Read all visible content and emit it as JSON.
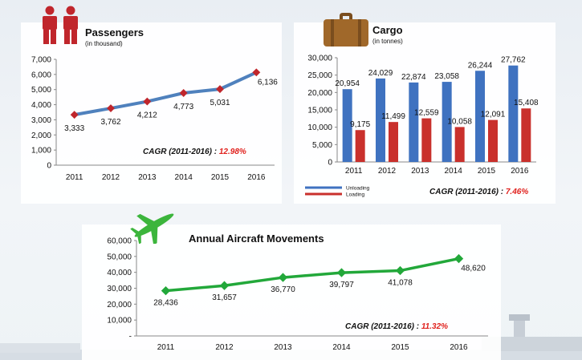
{
  "passengers": {
    "title": "Passengers",
    "subtitle": "(in thousand)",
    "cagr_label": "CAGR (2011-2016) : ",
    "cagr_value": "12.98%",
    "chart_data": {
      "type": "line",
      "x": [
        "2011",
        "2012",
        "2013",
        "2014",
        "2015",
        "2016"
      ],
      "y_ticks": [
        "0",
        "1,000",
        "2,000",
        "3,000",
        "4,000",
        "5,000",
        "6,000",
        "7,000"
      ],
      "ylim": [
        0,
        7000
      ],
      "series": [
        {
          "values": [
            3333,
            3762,
            4212,
            4773,
            5031,
            6136
          ],
          "labels": [
            "3,333",
            "3,762",
            "4,212",
            "4,773",
            "5,031",
            "6,136"
          ]
        }
      ],
      "line_color": "#4f81bd",
      "marker_color": "#c0262c"
    }
  },
  "cargo": {
    "title": "Cargo",
    "subtitle": "(in tonnes)",
    "cagr_label": "CAGR (2011-2016) : ",
    "cagr_value": "7.46%",
    "chart_data": {
      "type": "bar",
      "categories": [
        "2011",
        "2012",
        "2013",
        "2014",
        "2015",
        "2016"
      ],
      "y_ticks": [
        "0",
        "5,000",
        "10,000",
        "15,000",
        "20,000",
        "25,000",
        "30,000"
      ],
      "ylim": [
        0,
        30000
      ],
      "series": [
        {
          "name": "Unloading",
          "color": "#3f72c0",
          "values": [
            20954,
            24029,
            22874,
            23058,
            26244,
            27762
          ],
          "labels": [
            "20,954",
            "24,029",
            "22,874",
            "23,058",
            "26,244",
            "27,762"
          ]
        },
        {
          "name": "Loading",
          "color": "#c9302c",
          "values": [
            9175,
            11499,
            12559,
            10058,
            12091,
            15408
          ],
          "labels": [
            "9,175",
            "11,499",
            "12,559",
            "10,058",
            "12,091",
            "15,408"
          ]
        }
      ],
      "legend": "bottom-left"
    }
  },
  "aircraft": {
    "title": "Annual Aircraft Movements",
    "cagr_label": "CAGR (2011-2016) : ",
    "cagr_value": "11.32%",
    "chart_data": {
      "type": "line",
      "x": [
        "2011",
        "2012",
        "2013",
        "2014",
        "2015",
        "2016"
      ],
      "y_ticks": [
        "-",
        "10,000",
        "20,000",
        "30,000",
        "40,000",
        "50,000",
        "60,000"
      ],
      "ylim": [
        0,
        60000
      ],
      "series": [
        {
          "values": [
            28436,
            31657,
            36770,
            39797,
            41078,
            48620
          ],
          "labels": [
            "28,436",
            "31,657",
            "36,770",
            "39,797",
            "41,078",
            "48,620"
          ]
        }
      ],
      "line_color": "#22a83a"
    }
  },
  "icons": {
    "passengers": "people-icon",
    "cargo": "suitcase-icon",
    "aircraft": "airplane-icon"
  },
  "colors": {
    "cagr_value": "#e0201c",
    "people_icon": "#c0262c",
    "suitcase_icon": "#a0682a",
    "airplane_icon": "#3cb53c"
  }
}
